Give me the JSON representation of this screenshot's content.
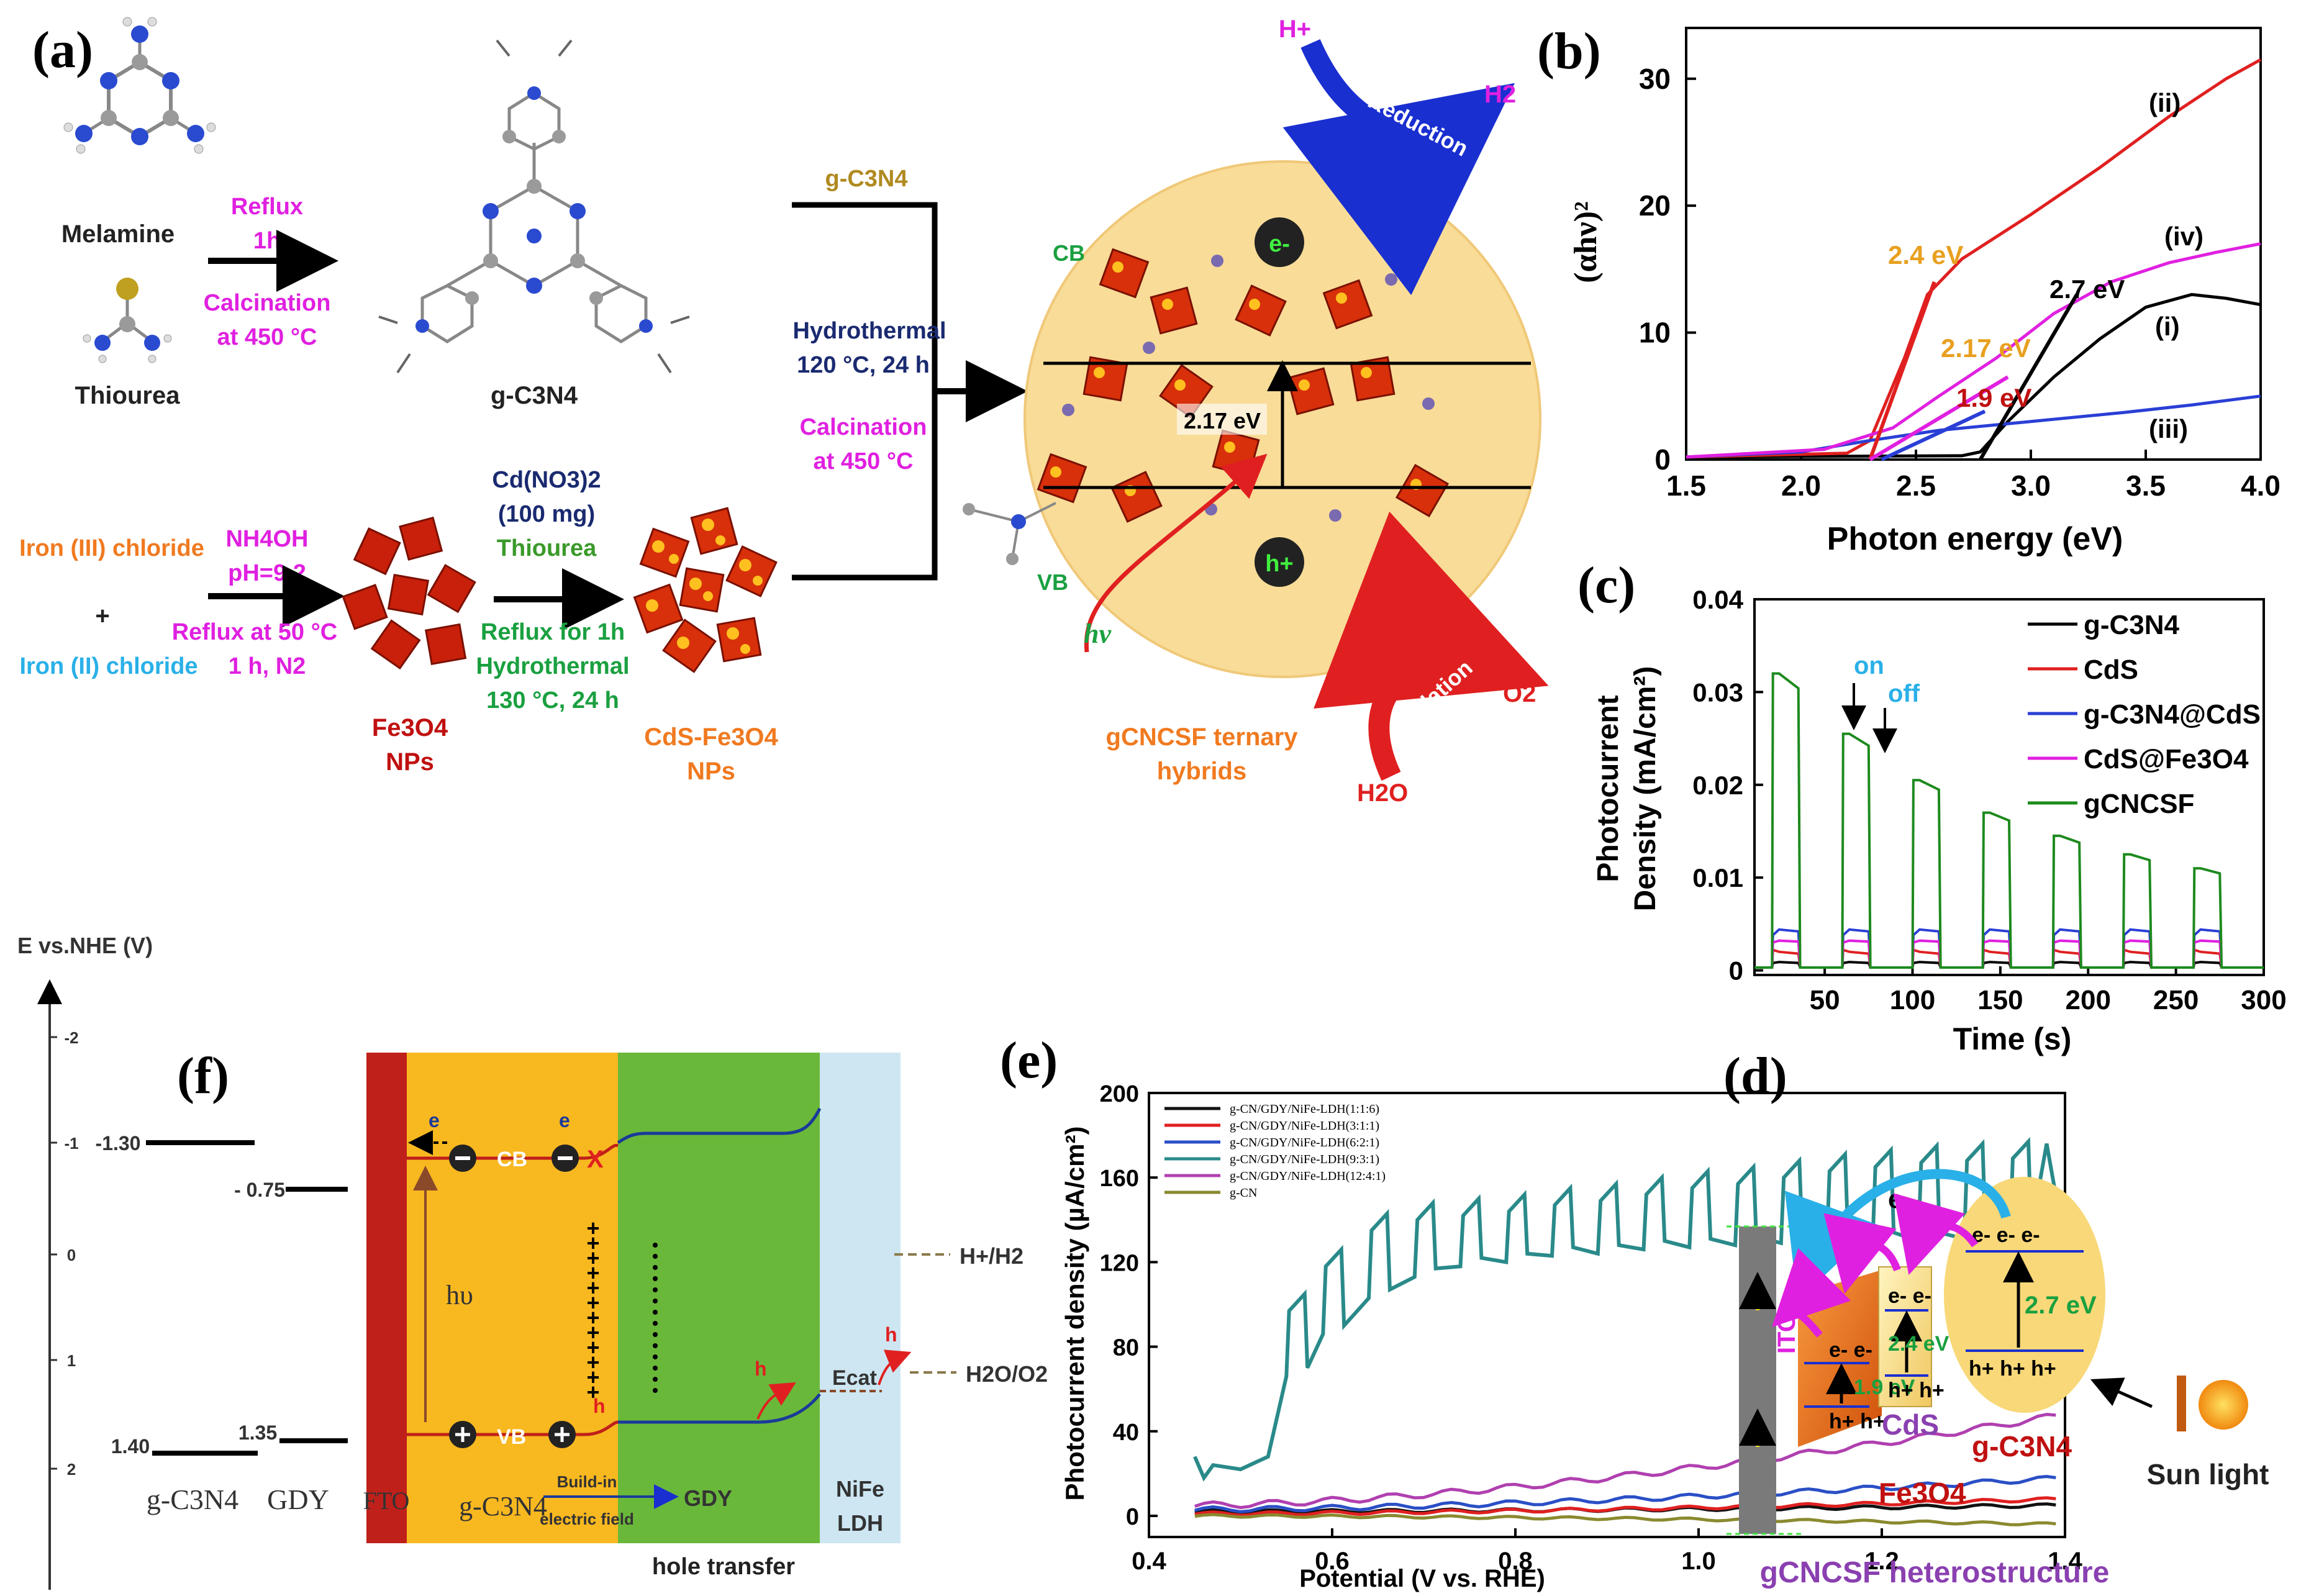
{
  "panel_letters": {
    "a": "(a)",
    "b": "(b)",
    "c": "(c)",
    "d": "(d)",
    "e": "(e)",
    "f": "(f)"
  },
  "panel_a": {
    "melamine": "Melamine",
    "thiourea": "Thiourea",
    "reflux_1h_a": "Reflux",
    "reflux_1h_b": "1h",
    "calcination_a": "Calcination",
    "calcination_b": "at 450 °C",
    "gc3n4": "g-C3N4",
    "iron3": "Iron (III) chloride",
    "plus": "+",
    "iron2": "Iron (II) chloride",
    "nh4oh": "NH4OH",
    "ph": "pH=9.2",
    "reflux50": "Reflux at 50 °C",
    "reflux50b": "1 h, N2",
    "fe3o4_a": "Fe3O4",
    "fe3o4_b": "NPs",
    "cdno3": "Cd(NO3)2",
    "cdmass": "(100 mg)",
    "thiourea2": "Thiourea",
    "reflux1h": "Reflux for 1h",
    "hydrothermal": "Hydrothermal",
    "hydro130": "130 °C, 24 h",
    "cdsfe_a": "CdS-Fe3O4",
    "cdsfe_b": "NPs",
    "gc3n4_top": "g-C3N4",
    "hydro120_a": "Hydrothermal",
    "hydro120_b": "120 °C, 24 h",
    "calc450_a": "Calcination",
    "calc450_b": "at 450 °C",
    "cb": "CB",
    "vb": "VB",
    "ev": "2.17 eV",
    "electron": "e-",
    "hole": "h+",
    "hv": "hν",
    "hplus": "H+",
    "reduction": "Reduction",
    "h2": "H2",
    "oxidation": "Oxidation",
    "o2": "O2",
    "h2o": "H2O",
    "ternary_a": "gCNCSF ternary",
    "ternary_b": "hybrids"
  },
  "panel_b": {
    "ylabel": "(αhν)²",
    "xlabel": "Photon energy (eV)",
    "yticks": [
      "0",
      "10",
      "20",
      "30"
    ],
    "xticks": [
      "1.5",
      "2.0",
      "2.5",
      "3.0",
      "3.5",
      "4.0"
    ],
    "ann_24": "2.4 eV",
    "ann_27": "2.7 eV",
    "ann_217": "2.17 eV",
    "ann_19": "1.9 eV",
    "lab_i": "(i)",
    "lab_ii": "(ii)",
    "lab_iii": "(iii)",
    "lab_iv": "(iv)",
    "colors": {
      "i": "#000000",
      "ii": "#e02020",
      "iii": "#2a3fd6",
      "iv": "#e020e0",
      "ann_gold": "#e8a020",
      "ann_red": "#c01010"
    }
  },
  "panel_c": {
    "ylabel1": "Photocurrent",
    "ylabel2": "Density (mA/cm²)",
    "xlabel": "Time (s)",
    "yticks": [
      "0",
      "0.01",
      "0.02",
      "0.03",
      "0.04"
    ],
    "xticks": [
      "50",
      "100",
      "150",
      "200",
      "250",
      "300"
    ],
    "on": "on",
    "off": "off",
    "legend": [
      "g-C3N4",
      "CdS",
      "g-C3N4@CdS",
      "CdS@Fe3O4",
      "gCNCSF"
    ],
    "colors": [
      "#000000",
      "#e02020",
      "#2a3fd6",
      "#e020e0",
      "#1e8a1e"
    ]
  },
  "panel_d": {
    "eminus": "e-",
    "ee": "e- e-",
    "eee": "e- e- e-",
    "hh": "h+ h+",
    "hhh": "h+ h+ h+",
    "ev19": "1.9 eV",
    "ev24": "2.4 eV",
    "ev27": "2.7 eV",
    "ito": "ITO",
    "fe3o4": "Fe3O4",
    "cds": "CdS",
    "gc3n4": "g-C3N4",
    "sunlight": "Sun light",
    "title": "gCNCSF heterostructure"
  },
  "panel_e": {
    "ylabel": "Photocurrent density (µA/cm²)",
    "xlabel": "Potential (V vs. RHE)",
    "yticks": [
      "0",
      "40",
      "80",
      "120",
      "160",
      "200"
    ],
    "xticks": [
      "0.4",
      "0.6",
      "0.8",
      "1.0",
      "1.2",
      "1.4"
    ],
    "legend": [
      "g-CN/GDY/NiFe-LDH(1:1:6)",
      "g-CN/GDY/NiFe-LDH(3:1:1)",
      "g-CN/GDY/NiFe-LDH(6:2:1)",
      "g-CN/GDY/NiFe-LDH(9:3:1)",
      "g-CN/GDY/NiFe-LDH(12:4:1)",
      "g-CN"
    ],
    "colors": [
      "#111111",
      "#e02020",
      "#2a4fc6",
      "#2a8a8a",
      "#b040b0",
      "#8a8a30"
    ]
  },
  "panel_f": {
    "axis_title": "E vs.NHE (V)",
    "ticks": [
      "-2",
      "-1",
      "0",
      "1",
      "2"
    ],
    "v130": "-1.30",
    "v075": "- 0.75",
    "v140": "1.40",
    "v135": "1.35",
    "gcn": "g-C3N4",
    "gdy": "GDY",
    "fto": "FTO",
    "cb": "CB",
    "vb": "VB",
    "hv": "hυ",
    "e": "e",
    "h": "h",
    "x": "X",
    "gc3n4_bottom": "g-C3N4",
    "buildin_a": "Build-in",
    "buildin_b": "electric field",
    "gdy_bottom": "GDY",
    "nife_a": "NiFe",
    "nife_b": "LDH",
    "hole_transfer": "hole transfer",
    "ecat": "Ecat",
    "hh2": "H+/H2",
    "h2oo2": "H2O/O2"
  }
}
